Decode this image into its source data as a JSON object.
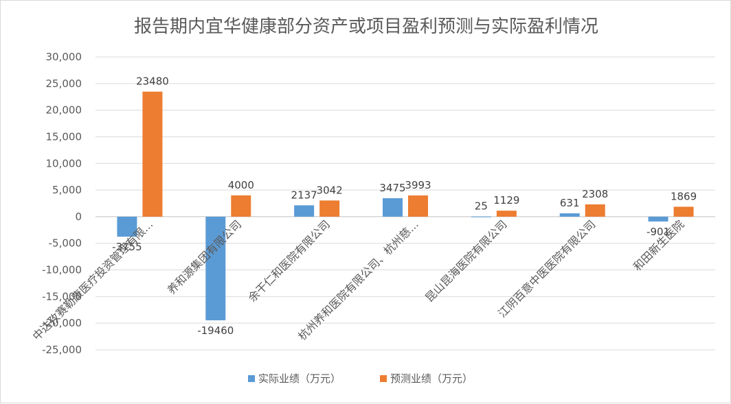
{
  "chart_data": {
    "type": "bar",
    "title": "报告期内宜华健康部分资产或项目盈利预测与实际盈利情况",
    "categories": [
      "中达孜赛勒康医疗投资管理有限...",
      "养和源集团有限公司",
      "余干仁和医院有限公司",
      "杭州养和医院有限公司、杭州慈...",
      "昆山昆海医院有限公司",
      "江阴百意中医医院有限公司",
      "和田新生医院"
    ],
    "series": [
      {
        "name": "实际业绩（万元）",
        "color": "#5b9bd5",
        "values": [
          -3755,
          -19460,
          2137,
          3475,
          25,
          631,
          -901
        ]
      },
      {
        "name": "预测业绩（万元）",
        "color": "#ed7d31",
        "values": [
          23480,
          4000,
          3042,
          3993,
          1129,
          2308,
          1869
        ]
      }
    ],
    "y_ticks": [
      "30,000",
      "25,000",
      "20,000",
      "15,000",
      "10,000",
      "5,000",
      "0",
      "-5,000",
      "-10,000",
      "-15,000",
      "-20,000",
      "-25,000"
    ],
    "ylim": [
      -25000,
      30000
    ],
    "grid": true,
    "legend": "bottom"
  }
}
